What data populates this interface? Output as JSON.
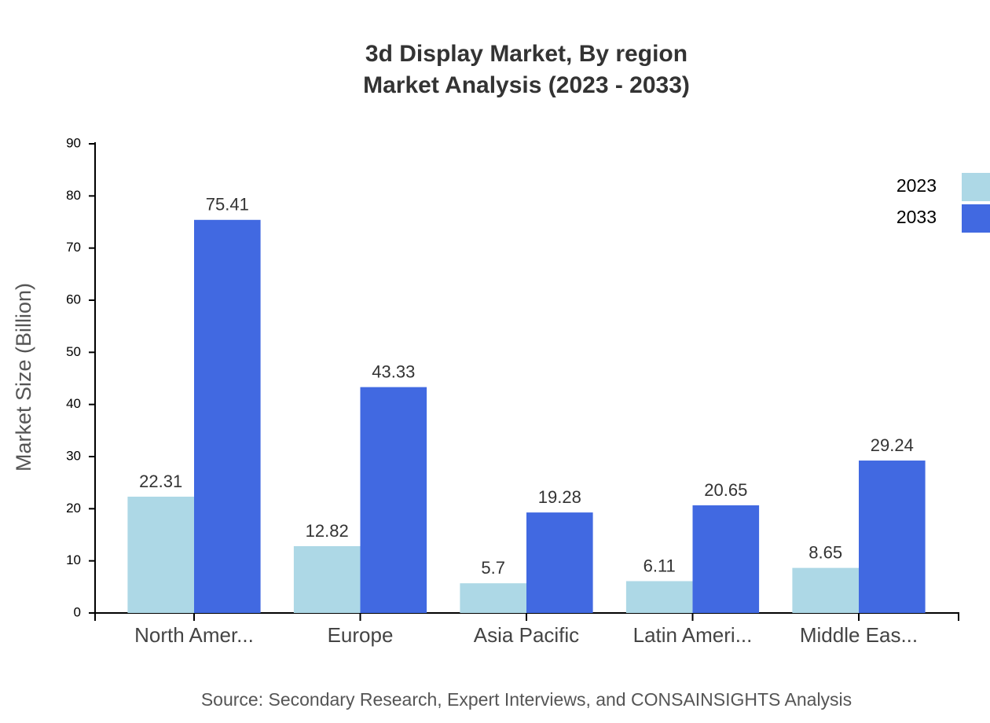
{
  "chart_data": {
    "type": "bar",
    "title": "3d Display Market, By region",
    "subtitle": "Market Analysis (2023 - 2033)",
    "y_label": "Market Size (Billion)",
    "source": "Source: Secondary Research, Expert Interviews, and CONSAINSIGHTS Analysis",
    "categories": [
      "North Amer...",
      "Europe",
      "Asia Pacific",
      "Latin Ameri...",
      "Middle Eas..."
    ],
    "series": [
      {
        "name": "2023",
        "color": "#add8e6",
        "values": [
          22.31,
          12.82,
          5.7,
          6.11,
          8.65
        ]
      },
      {
        "name": "2033",
        "color": "#4169e1",
        "values": [
          75.41,
          43.33,
          19.28,
          20.65,
          29.24
        ]
      }
    ],
    "ylim": [
      0,
      90
    ],
    "yticks": [
      0,
      10,
      20,
      30,
      40,
      50,
      60,
      70,
      80,
      90
    ],
    "legend": "top-right"
  }
}
